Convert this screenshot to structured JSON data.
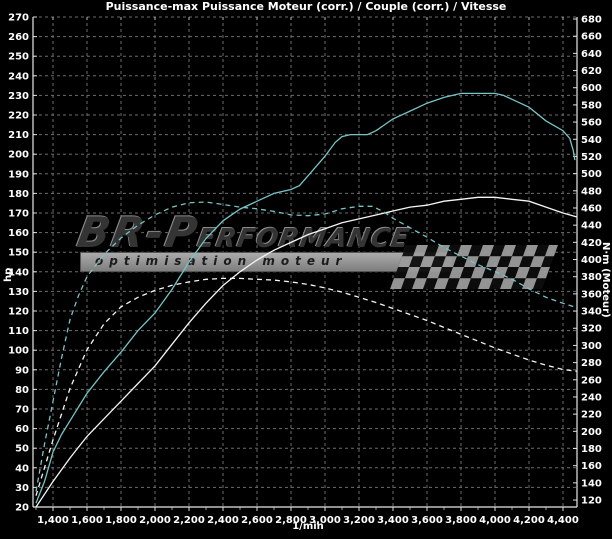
{
  "title": "Puissance-max Puissance Moteur (corr.) / Couple (corr.) / Vitesse",
  "watermark": {
    "brand_left": "BR-P",
    "brand_right": "ERFORMANCE",
    "tagline": "optimisation moteur"
  },
  "chart_data": {
    "type": "line",
    "title": "Puissance-max Puissance Moteur (corr.) / Couple (corr.) / Vitesse",
    "xlabel": "1/min",
    "ylabel_left": "hp",
    "ylabel_right": "N·m (Moteur)",
    "background": "#000000",
    "grid": true,
    "legend_position": "none",
    "x_axis": {
      "tick_values": [
        1400,
        1600,
        1800,
        2000,
        2200,
        2400,
        2600,
        2800,
        3000,
        3200,
        3400,
        3600,
        3800,
        4000,
        4200,
        4400
      ],
      "tick_labels": [
        "1,400",
        "1,600",
        "1,800",
        "2,000",
        "2,200",
        "2,400",
        "2,600",
        "2,800",
        "3,000",
        "3,200",
        "3,400",
        "3,600",
        "3,800",
        "4,000",
        "4,200",
        "4,400"
      ],
      "minor_tick_step": 100
    },
    "y_left_axis": {
      "min": 20,
      "max": 270,
      "tick_step": 10,
      "tick_values": [
        270,
        260,
        250,
        240,
        230,
        220,
        210,
        200,
        190,
        180,
        170,
        160,
        150,
        140,
        130,
        120,
        110,
        100,
        90,
        80,
        70,
        60,
        50,
        40,
        30,
        20
      ]
    },
    "y_right_axis": {
      "min": 120,
      "max": 680,
      "tick_step": 20,
      "tick_values": [
        680,
        660,
        640,
        620,
        600,
        580,
        560,
        540,
        520,
        500,
        480,
        460,
        440,
        420,
        400,
        380,
        360,
        340,
        320,
        300,
        280,
        260,
        240,
        220,
        200,
        180,
        160,
        140,
        120
      ]
    },
    "series": [
      {
        "id": "hp-solid-cyan",
        "axis": "left",
        "unit": "hp",
        "line": "solid",
        "color": "#76c4c6",
        "peak": {
          "value": 231,
          "rpm": 3900
        },
        "points": [
          [
            1300,
            22
          ],
          [
            1350,
            33
          ],
          [
            1400,
            48
          ],
          [
            1450,
            57
          ],
          [
            1500,
            64
          ],
          [
            1600,
            78
          ],
          [
            1700,
            89
          ],
          [
            1800,
            99
          ],
          [
            1900,
            110
          ],
          [
            2000,
            119
          ],
          [
            2100,
            131
          ],
          [
            2200,
            145
          ],
          [
            2300,
            157
          ],
          [
            2400,
            166
          ],
          [
            2500,
            172
          ],
          [
            2600,
            176
          ],
          [
            2700,
            180
          ],
          [
            2800,
            182
          ],
          [
            2850,
            184
          ],
          [
            2900,
            189
          ],
          [
            3000,
            199
          ],
          [
            3060,
            206
          ],
          [
            3100,
            209
          ],
          [
            3150,
            210
          ],
          [
            3250,
            210
          ],
          [
            3300,
            212
          ],
          [
            3400,
            218
          ],
          [
            3500,
            222
          ],
          [
            3600,
            226
          ],
          [
            3700,
            229
          ],
          [
            3750,
            230
          ],
          [
            3800,
            231
          ],
          [
            3900,
            231
          ],
          [
            4000,
            231
          ],
          [
            4050,
            230
          ],
          [
            4100,
            228
          ],
          [
            4200,
            224
          ],
          [
            4300,
            217
          ],
          [
            4400,
            212
          ],
          [
            4440,
            208
          ],
          [
            4460,
            202
          ],
          [
            4470,
            197
          ]
        ]
      },
      {
        "id": "hp-solid-white",
        "axis": "left",
        "unit": "hp",
        "line": "solid",
        "color": "#f5f5f5",
        "peak": {
          "value": 178,
          "rpm": 3900
        },
        "points": [
          [
            1300,
            20
          ],
          [
            1400,
            33
          ],
          [
            1500,
            45
          ],
          [
            1600,
            56
          ],
          [
            1700,
            65
          ],
          [
            1800,
            74
          ],
          [
            1900,
            83
          ],
          [
            2000,
            92
          ],
          [
            2100,
            103
          ],
          [
            2200,
            114
          ],
          [
            2300,
            124
          ],
          [
            2400,
            133
          ],
          [
            2500,
            140
          ],
          [
            2600,
            146
          ],
          [
            2700,
            151
          ],
          [
            2800,
            155
          ],
          [
            2900,
            159
          ],
          [
            3000,
            162
          ],
          [
            3100,
            165
          ],
          [
            3200,
            167
          ],
          [
            3300,
            169
          ],
          [
            3400,
            171
          ],
          [
            3500,
            173
          ],
          [
            3600,
            174
          ],
          [
            3700,
            176
          ],
          [
            3800,
            177
          ],
          [
            3900,
            178
          ],
          [
            4000,
            178
          ],
          [
            4100,
            177
          ],
          [
            4200,
            176
          ],
          [
            4300,
            173
          ],
          [
            4400,
            170
          ],
          [
            4480,
            168
          ]
        ]
      },
      {
        "id": "nm-dashed-cyan",
        "axis": "right",
        "unit": "N·m",
        "line": "dashed",
        "color": "#76c4c6",
        "peak": {
          "value": 467,
          "rpm": 2300
        },
        "points": [
          [
            1300,
            130
          ],
          [
            1350,
            185
          ],
          [
            1400,
            235
          ],
          [
            1450,
            285
          ],
          [
            1500,
            330
          ],
          [
            1550,
            358
          ],
          [
            1600,
            380
          ],
          [
            1700,
            406
          ],
          [
            1800,
            425
          ],
          [
            1900,
            440
          ],
          [
            2000,
            452
          ],
          [
            2100,
            461
          ],
          [
            2200,
            466
          ],
          [
            2300,
            467
          ],
          [
            2400,
            464
          ],
          [
            2500,
            461
          ],
          [
            2600,
            459
          ],
          [
            2700,
            456
          ],
          [
            2800,
            452
          ],
          [
            2900,
            451
          ],
          [
            3000,
            453
          ],
          [
            3100,
            459
          ],
          [
            3200,
            462
          ],
          [
            3280,
            462
          ],
          [
            3350,
            455
          ],
          [
            3400,
            448
          ],
          [
            3500,
            437
          ],
          [
            3600,
            426
          ],
          [
            3700,
            414
          ],
          [
            3800,
            404
          ],
          [
            3900,
            394
          ],
          [
            4000,
            386
          ],
          [
            4100,
            377
          ],
          [
            4200,
            366
          ],
          [
            4300,
            356
          ],
          [
            4400,
            349
          ],
          [
            4480,
            344
          ]
        ]
      },
      {
        "id": "nm-dashed-white",
        "axis": "right",
        "unit": "N·m",
        "line": "dashed",
        "color": "#f5f5f5",
        "peak": {
          "value": 378,
          "rpm": 2450
        },
        "points": [
          [
            1300,
            125
          ],
          [
            1400,
            190
          ],
          [
            1500,
            250
          ],
          [
            1600,
            295
          ],
          [
            1700,
            325
          ],
          [
            1800,
            345
          ],
          [
            1900,
            356
          ],
          [
            2000,
            364
          ],
          [
            2100,
            370
          ],
          [
            2200,
            374
          ],
          [
            2300,
            377
          ],
          [
            2400,
            378
          ],
          [
            2500,
            378
          ],
          [
            2600,
            377
          ],
          [
            2700,
            376
          ],
          [
            2800,
            374
          ],
          [
            2900,
            371
          ],
          [
            3000,
            367
          ],
          [
            3100,
            362
          ],
          [
            3200,
            356
          ],
          [
            3300,
            350
          ],
          [
            3400,
            343
          ],
          [
            3500,
            336
          ],
          [
            3600,
            329
          ],
          [
            3700,
            321
          ],
          [
            3800,
            313
          ],
          [
            3900,
            305
          ],
          [
            4000,
            297
          ],
          [
            4100,
            290
          ],
          [
            4200,
            283
          ],
          [
            4300,
            277
          ],
          [
            4400,
            272
          ],
          [
            4480,
            270
          ]
        ]
      }
    ]
  }
}
